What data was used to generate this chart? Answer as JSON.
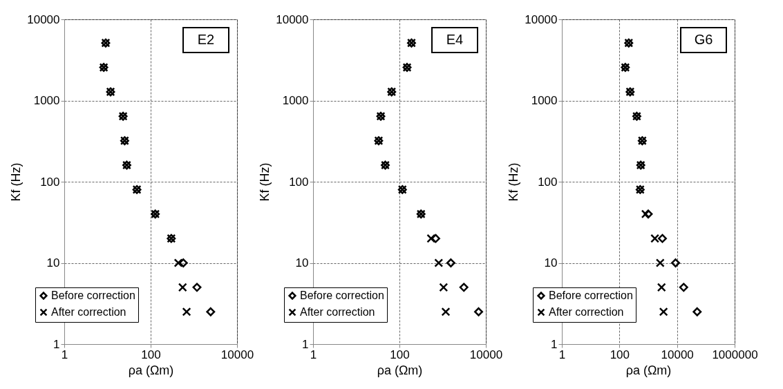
{
  "chart_data": [
    {
      "type": "scatter",
      "annotations": [
        "E2"
      ],
      "xlabel": "ρa (Ωm)",
      "ylabel": "Kf (Hz)",
      "log": "xy",
      "xlim": [
        1,
        10000
      ],
      "xticks": [
        1,
        100,
        10000
      ],
      "ylim": [
        1,
        10000
      ],
      "yticks": [
        1,
        10,
        100,
        1000,
        10000
      ],
      "grid": true,
      "legend": "bottom left",
      "series": [
        {
          "name": "Before correction",
          "color": "#000000",
          "marker": "diamond",
          "x": [
            9.1,
            8.2,
            11.8,
            23,
            25,
            28,
            48,
            128,
            300,
            570,
            1180,
            2450
          ],
          "values": [
            5120,
            2560,
            1280,
            640,
            320,
            160,
            80,
            40,
            20,
            10,
            5,
            2.5
          ]
        },
        {
          "name": "After correction",
          "color": "#000000",
          "marker": "cross",
          "x": [
            9.1,
            8.2,
            11.8,
            23,
            25,
            28,
            48,
            128,
            300,
            437,
            550,
            680
          ],
          "values": [
            5120,
            2560,
            1280,
            640,
            320,
            160,
            80,
            40,
            20,
            10,
            5,
            2.5
          ]
        }
      ]
    },
    {
      "type": "scatter",
      "annotations": [
        "E4"
      ],
      "xlabel": "ρa (Ωm)",
      "ylabel": "Kf (Hz)",
      "log": "xy",
      "xlim": [
        1,
        10000
      ],
      "xticks": [
        1,
        100,
        10000
      ],
      "ylim": [
        1,
        10000
      ],
      "yticks": [
        1,
        10,
        100,
        1000,
        10000
      ],
      "grid": true,
      "legend": "bottom left",
      "series": [
        {
          "name": "Before correction",
          "color": "#000000",
          "marker": "diamond",
          "x": [
            190,
            150,
            66,
            37,
            33,
            47,
            117,
            316,
            690,
            1550,
            3100,
            6800
          ],
          "values": [
            5120,
            2560,
            1280,
            640,
            320,
            160,
            80,
            40,
            20,
            10,
            5,
            2.5
          ]
        },
        {
          "name": "After correction",
          "color": "#000000",
          "marker": "cross",
          "x": [
            190,
            150,
            66,
            37,
            33,
            47,
            117,
            316,
            540,
            810,
            1050,
            1180
          ],
          "values": [
            5120,
            2560,
            1280,
            640,
            320,
            160,
            80,
            40,
            20,
            10,
            5,
            2.5
          ]
        }
      ]
    },
    {
      "type": "scatter",
      "annotations": [
        "G6"
      ],
      "xlabel": "ρa (Ωm)",
      "ylabel": "Kf (Hz)",
      "log": "xy",
      "xlim": [
        1,
        1000000
      ],
      "xticks": [
        1,
        100,
        10000,
        1000000
      ],
      "ylim": [
        1,
        10000
      ],
      "yticks": [
        1,
        10,
        100,
        1000,
        10000
      ],
      "grid": true,
      "legend": "bottom left",
      "series": [
        {
          "name": "Before correction",
          "color": "#000000",
          "marker": "diamond",
          "x": [
            210,
            160,
            235,
            400,
            620,
            550,
            525,
            1000,
            3100,
            8900,
            17000,
            50000
          ],
          "values": [
            5120,
            2560,
            1280,
            640,
            320,
            160,
            80,
            40,
            20,
            10,
            5,
            2.5
          ]
        },
        {
          "name": "After correction",
          "color": "#000000",
          "marker": "cross",
          "x": [
            210,
            160,
            235,
            400,
            620,
            550,
            525,
            810,
            1700,
            2600,
            2900,
            3400
          ],
          "values": [
            5120,
            2560,
            1280,
            640,
            320,
            160,
            80,
            40,
            20,
            10,
            5,
            2.5
          ]
        }
      ]
    }
  ]
}
